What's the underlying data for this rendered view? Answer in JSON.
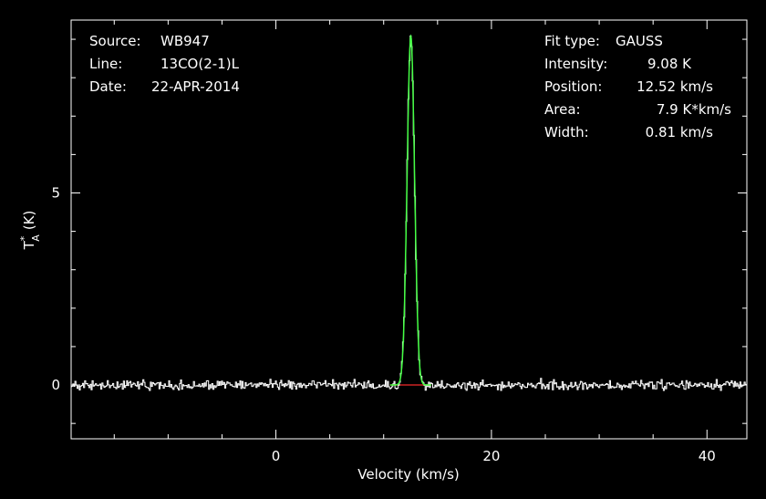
{
  "chart_data": {
    "type": "line",
    "xlabel": "Velocity (km/s)",
    "ylabel_main": "T",
    "ylabel_super": "*",
    "ylabel_sub": "A",
    "ylabel_unit": "(K)",
    "xlim": [
      -19,
      43.7
    ],
    "ylim": [
      -1.4,
      9.5
    ],
    "xticks": [
      0,
      20,
      40
    ],
    "xtick_labels": [
      "0",
      "20",
      "40"
    ],
    "yticks": [
      0,
      5
    ],
    "ytick_labels": [
      "0",
      "5"
    ],
    "grid": false,
    "colors": {
      "spectrum": "#ffffff",
      "fit": "#44ff44",
      "baseline": "#cc2222"
    },
    "header_left": {
      "source_label": "Source:",
      "source_value": "WB947",
      "line_label": "Line:",
      "line_value": "13CO(2-1)L",
      "date_label": "Date:",
      "date_value": "22-APR-2014"
    },
    "header_right": {
      "fit_label": "Fit type:",
      "fit_value": "GAUSS",
      "intensity_label": "Intensity:",
      "intensity_value": "9.08 K",
      "position_label": "Position:",
      "position_value": "12.52 km/s",
      "area_label": "Area:",
      "area_value": "7.9 K*km/s",
      "width_label": "Width:",
      "width_value": "0.81 km/s"
    },
    "series": [
      {
        "name": "spectrum",
        "style": "histogram",
        "x_start": -19,
        "x_step": 0.1,
        "noise_rms": 0.1,
        "peak_amplitude": 9.08,
        "peak_center": 12.52,
        "peak_fwhm": 0.81
      },
      {
        "name": "gauss-fit",
        "style": "line",
        "amplitude": 9.08,
        "center": 12.52,
        "fwhm": 0.81,
        "x_range": [
          10.6,
          14.4
        ]
      }
    ]
  }
}
